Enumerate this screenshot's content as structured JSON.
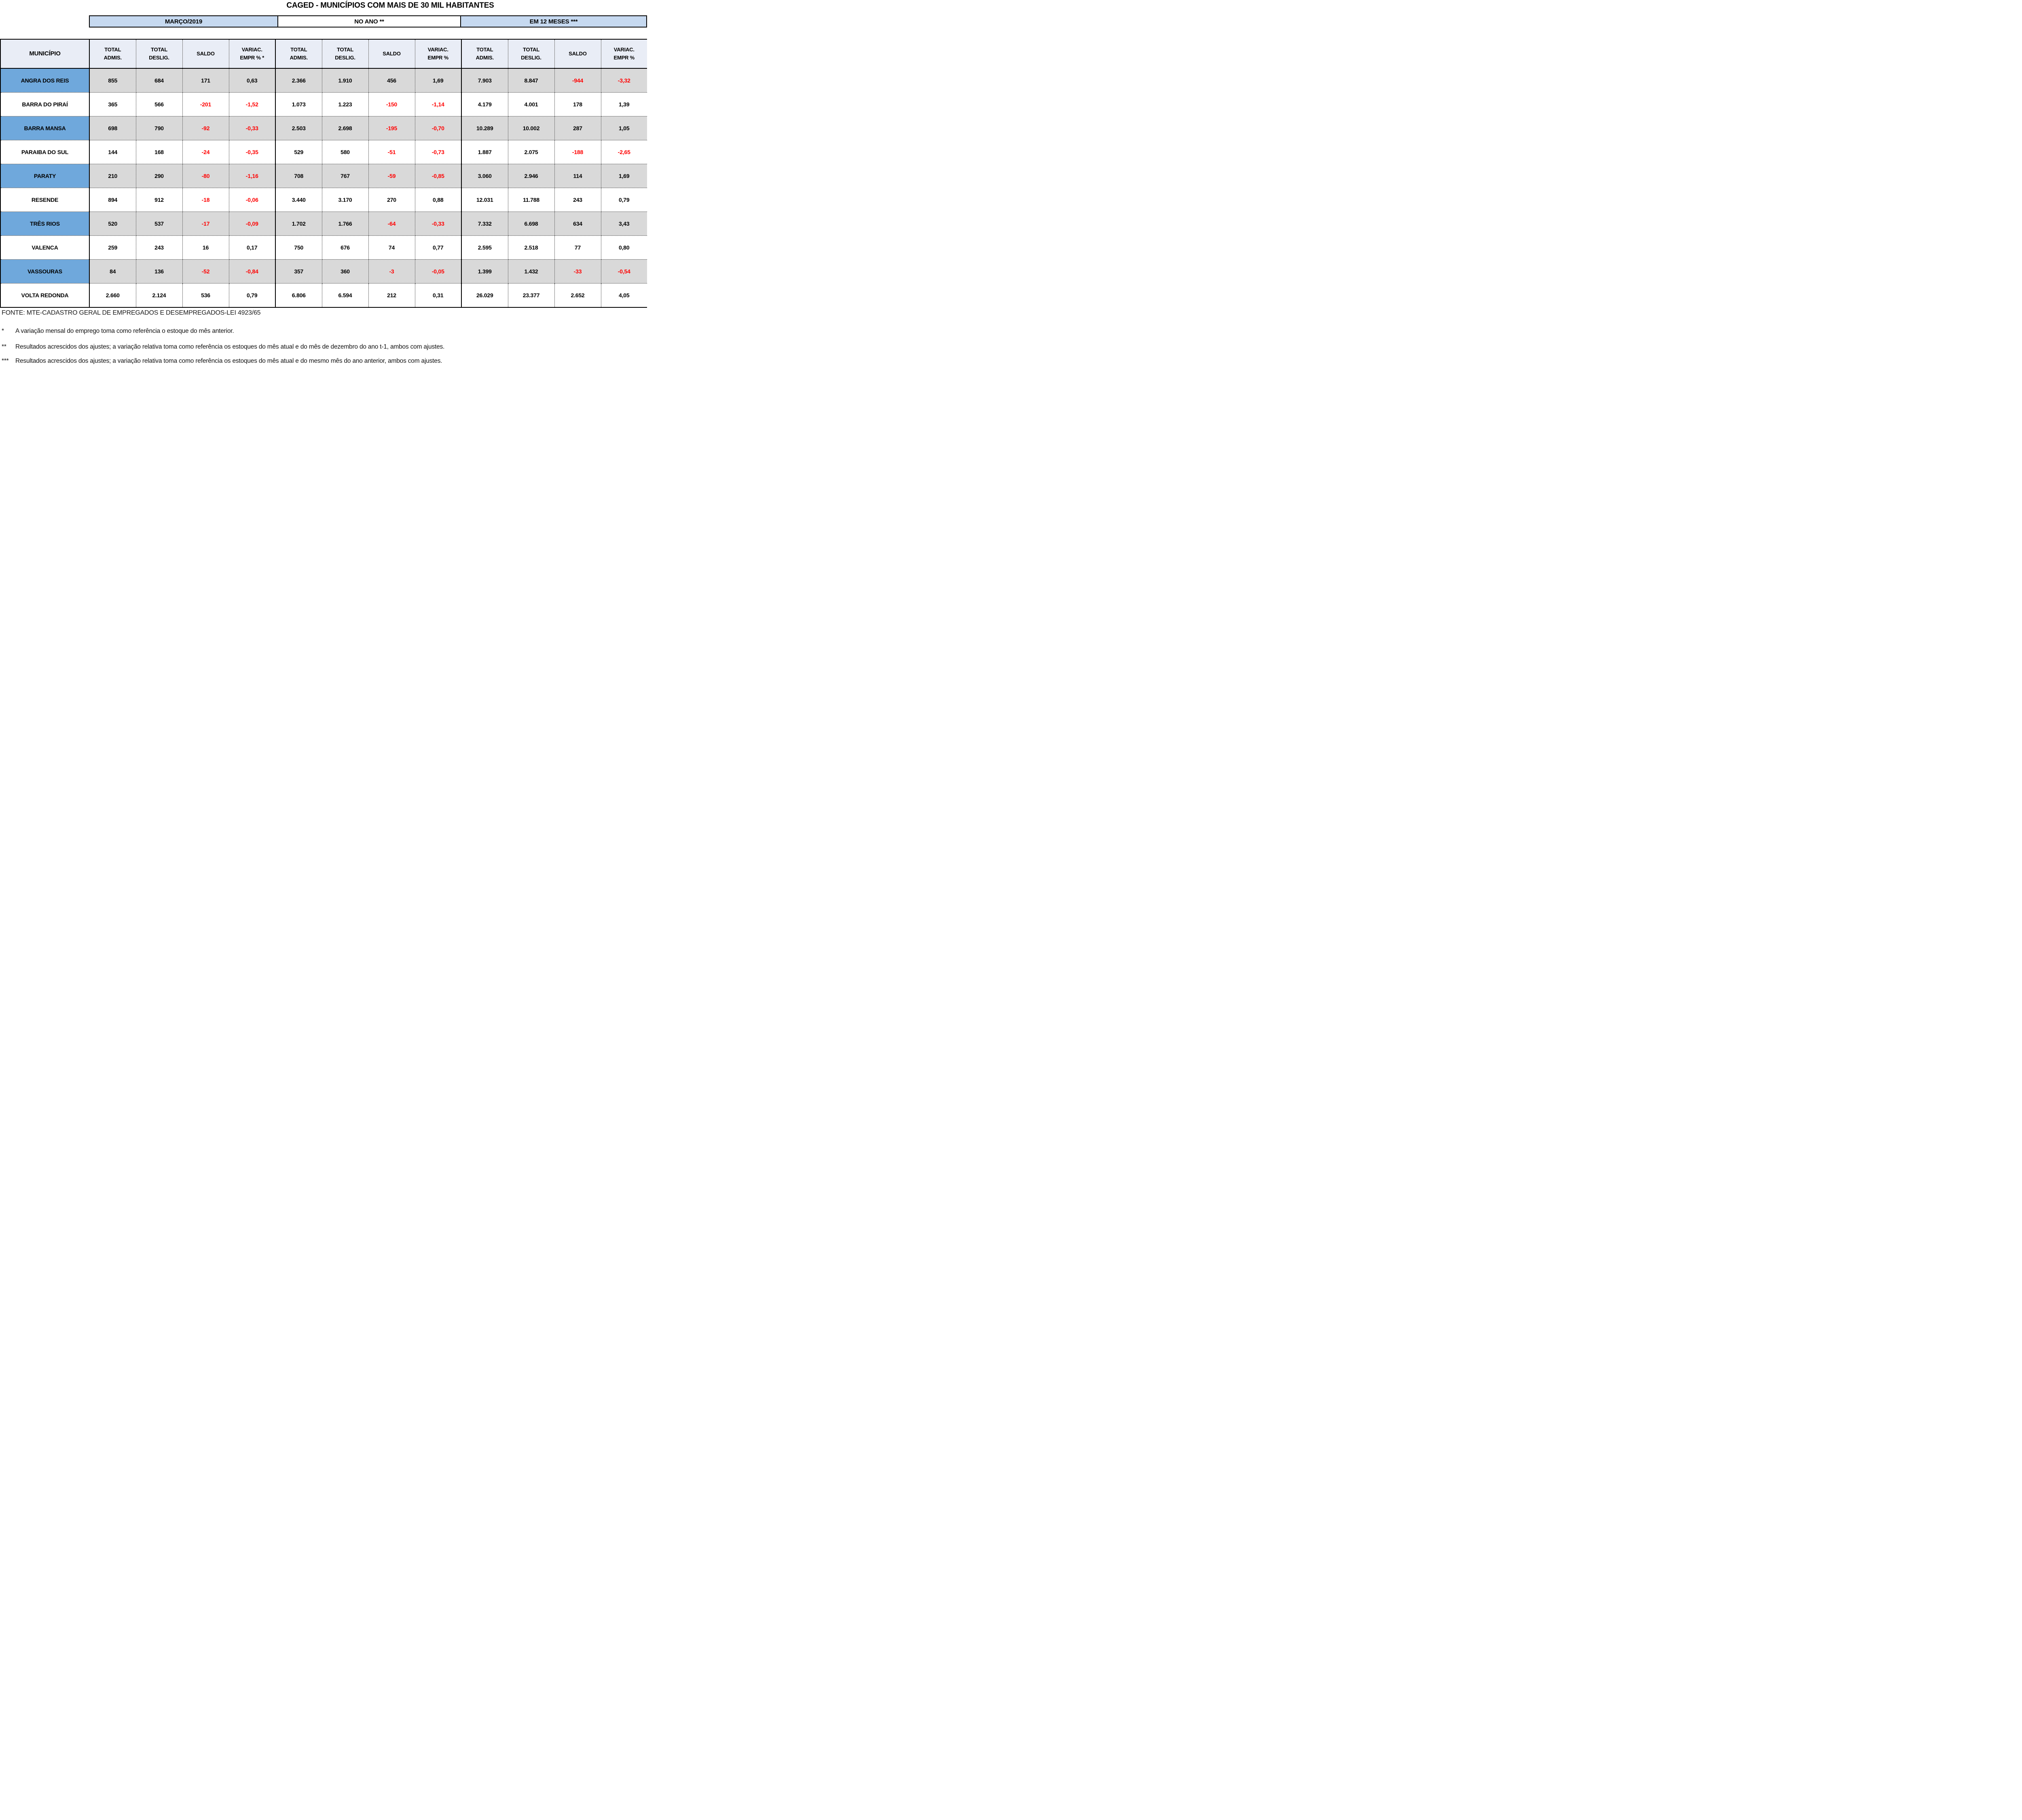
{
  "title": "CAGED - MUNICÍPIOS COM MAIS DE 30 MIL HABITANTES",
  "columns": {
    "municipio": "MUNICÍPIO"
  },
  "sections": [
    {
      "label": "MARÇO/2019",
      "subheaders": [
        [
          "TOTAL",
          "ADMIS."
        ],
        [
          "TOTAL",
          "DESLIG."
        ],
        [
          "SALDO",
          ""
        ],
        [
          "VARIAC.",
          "EMPR % *"
        ]
      ]
    },
    {
      "label": "NO ANO **",
      "subheaders": [
        [
          "TOTAL",
          "ADMIS."
        ],
        [
          "TOTAL",
          "DESLIG."
        ],
        [
          "SALDO",
          ""
        ],
        [
          "VARIAC.",
          "EMPR %"
        ]
      ]
    },
    {
      "label": "EM 12 MESES ***",
      "subheaders": [
        [
          "TOTAL",
          "ADMIS."
        ],
        [
          "TOTAL",
          "DESLIG."
        ],
        [
          "SALDO",
          ""
        ],
        [
          "VARIAC.",
          "EMPR %"
        ]
      ]
    }
  ],
  "rows": [
    {
      "municipio": "ANGRA DOS REIS",
      "values": [
        "855",
        "684",
        "171",
        "0,63",
        "2.366",
        "1.910",
        "456",
        "1,69",
        "7.903",
        "8.847",
        "-944",
        "-3,32"
      ]
    },
    {
      "municipio": "BARRA DO PIRAÍ",
      "values": [
        "365",
        "566",
        "-201",
        "-1,52",
        "1.073",
        "1.223",
        "-150",
        "-1,14",
        "4.179",
        "4.001",
        "178",
        "1,39"
      ]
    },
    {
      "municipio": "BARRA MANSA",
      "values": [
        "698",
        "790",
        "-92",
        "-0,33",
        "2.503",
        "2.698",
        "-195",
        "-0,70",
        "10.289",
        "10.002",
        "287",
        "1,05"
      ]
    },
    {
      "municipio": "PARAIBA DO SUL",
      "values": [
        "144",
        "168",
        "-24",
        "-0,35",
        "529",
        "580",
        "-51",
        "-0,73",
        "1.887",
        "2.075",
        "-188",
        "-2,65"
      ]
    },
    {
      "municipio": "PARATY",
      "values": [
        "210",
        "290",
        "-80",
        "-1,16",
        "708",
        "767",
        "-59",
        "-0,85",
        "3.060",
        "2.946",
        "114",
        "1,69"
      ]
    },
    {
      "municipio": "RESENDE",
      "values": [
        "894",
        "912",
        "-18",
        "-0,06",
        "3.440",
        "3.170",
        "270",
        "0,88",
        "12.031",
        "11.788",
        "243",
        "0,79"
      ]
    },
    {
      "municipio": "TRÊS RIOS",
      "values": [
        "520",
        "537",
        "-17",
        "-0,09",
        "1.702",
        "1.766",
        "-64",
        "-0,33",
        "7.332",
        "6.698",
        "634",
        "3,43"
      ]
    },
    {
      "municipio": "VALENCA",
      "values": [
        "259",
        "243",
        "16",
        "0,17",
        "750",
        "676",
        "74",
        "0,77",
        "2.595",
        "2.518",
        "77",
        "0,80"
      ]
    },
    {
      "municipio": "VASSOURAS",
      "values": [
        "84",
        "136",
        "-52",
        "-0,84",
        "357",
        "360",
        "-3",
        "-0,05",
        "1.399",
        "1.432",
        "-33",
        "-0,54"
      ]
    },
    {
      "municipio": "VOLTA REDONDA",
      "values": [
        "2.660",
        "2.124",
        "536",
        "0,79",
        "6.806",
        "6.594",
        "212",
        "0,31",
        "26.029",
        "23.377",
        "2.652",
        "4,05"
      ]
    }
  ],
  "footer": {
    "fonte": "FONTE: MTE-CADASTRO GERAL DE EMPREGADOS E DESEMPREGADOS-LEI 4923/65",
    "notes": [
      {
        "marker": "*",
        "text": "A variação mensal do emprego toma como referência o estoque do mês anterior."
      },
      {
        "marker": "**",
        "text": "Resultados acrescidos dos ajustes; a variação relativa toma como referência os estoques do mês atual e do mês de dezembro do ano t-1, ambos com ajustes."
      },
      {
        "marker": "***",
        "text": "Resultados acrescidos dos ajustes; a variação relativa toma como referência os estoques do  mês atual e do mesmo mês do ano anterior, ambos com ajustes."
      }
    ]
  },
  "colors": {
    "negative": "#ff0000",
    "band_blue": "#c6d9f0",
    "row_blue": "#6fa8dc",
    "row_gray": "#d9d9d9",
    "header_bg": "#e9edf6"
  }
}
